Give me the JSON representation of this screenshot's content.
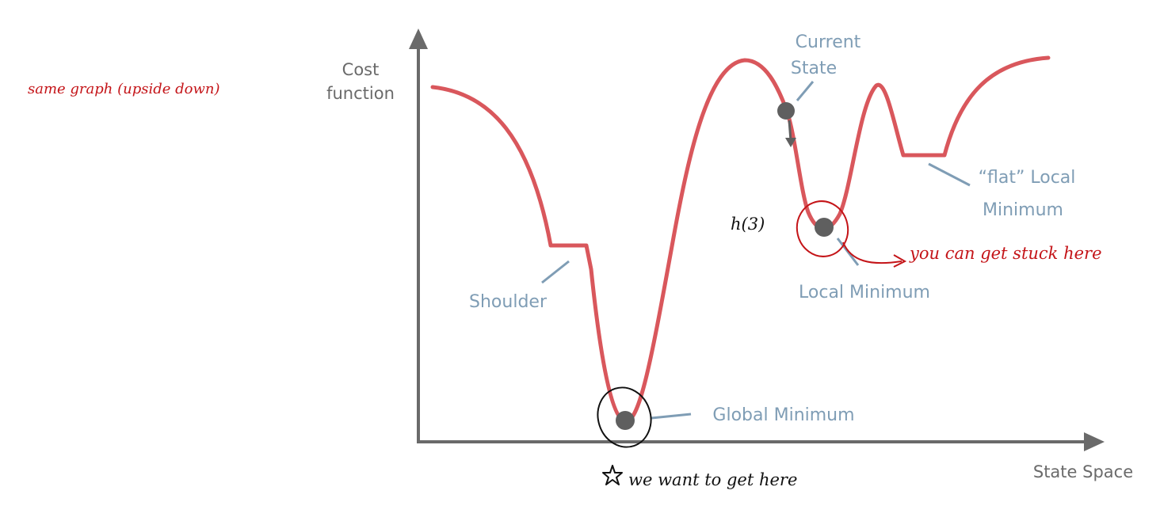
{
  "colors": {
    "curve": "#d9575c",
    "axis": "#6a6a6a",
    "label_blue": "#7f9db5",
    "point": "#5f5f5f",
    "annotation_red": "#c41418",
    "annotation_black": "#111111"
  },
  "axes": {
    "y_label_line1": "Cost",
    "y_label_line2": "function",
    "x_label": "State Space"
  },
  "labels": {
    "current_state_line1": "Current",
    "current_state_line2": "State",
    "flat_local_line1": "“flat” Local",
    "flat_local_line2": "Minimum",
    "local_minimum": "Local Minimum",
    "shoulder": "Shoulder",
    "global_minimum": "Global Minimum"
  },
  "annotations": {
    "same_graph": "same graph (upside down)",
    "h3": "h(3)",
    "stuck": "you can get stuck here",
    "get_here": "we want to get here"
  },
  "icons": {
    "star": "star-icon",
    "arrow": "arrow-right-icon"
  }
}
